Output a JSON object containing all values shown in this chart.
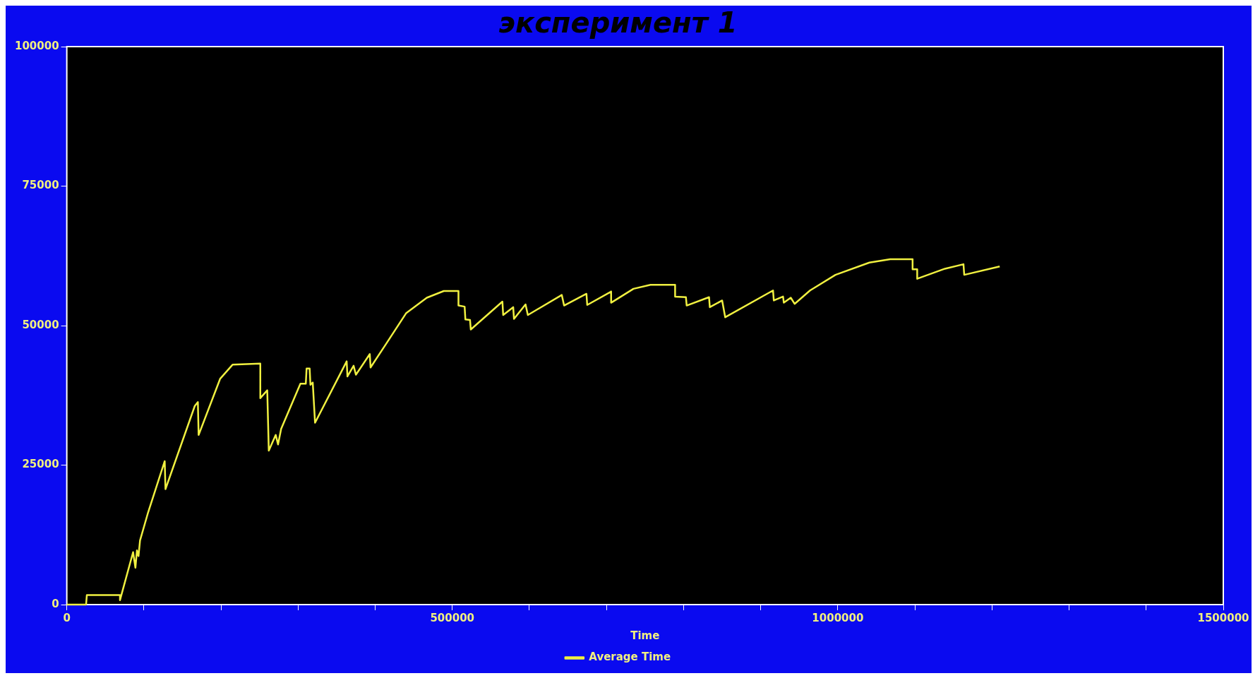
{
  "chart_data": {
    "type": "line",
    "title": "эксперимент 1",
    "xlabel": "Time",
    "legend": "bottom",
    "marker": "none",
    "grid": false,
    "xlim": [
      0,
      1500000
    ],
    "ylim": [
      0,
      100000
    ],
    "xticks": [
      0,
      {
        "value": 100000,
        "label": null
      },
      {
        "value": 200000,
        "label": null
      },
      {
        "value": 300000,
        "label": null
      },
      {
        "value": 400000,
        "label": null
      },
      500000,
      {
        "value": 600000,
        "label": null
      },
      {
        "value": 700000,
        "label": null
      },
      {
        "value": 800000,
        "label": null
      },
      {
        "value": 900000,
        "label": null
      },
      1000000,
      {
        "value": 1100000,
        "label": null
      },
      {
        "value": 1200000,
        "label": null
      },
      {
        "value": 1300000,
        "label": null
      },
      {
        "value": 1400000,
        "label": null
      },
      1500000
    ],
    "yticks": [
      0,
      25000,
      50000,
      75000,
      100000
    ],
    "series": [
      {
        "name": "Average Time",
        "color": "#f0f040",
        "x": [
          0,
          25000,
          26000,
          69000,
          69000,
          86000,
          89000,
          91000,
          93000,
          95000,
          105000,
          127000,
          128000,
          166000,
          170000,
          171000,
          199000,
          215000,
          251000,
          251000,
          260000,
          262000,
          271000,
          274000,
          278000,
          303000,
          310000,
          311000,
          315000,
          316000,
          319000,
          322000,
          363000,
          364000,
          372000,
          375000,
          393000,
          394000,
          414000,
          440000,
          467000,
          489000,
          508000,
          508000,
          516000,
          517000,
          523000,
          524000,
          565000,
          566000,
          579000,
          580000,
          595000,
          598000,
          642000,
          645000,
          674000,
          675000,
          706000,
          706000,
          735000,
          757000,
          789000,
          789000,
          803000,
          804000,
          833000,
          834000,
          850000,
          854000,
          916000,
          917000,
          929000,
          930000,
          939000,
          944000,
          964000,
          997000,
          1041000,
          1068000,
          1097000,
          1097000,
          1103000,
          1103000,
          1139000,
          1163000,
          1164000,
          1210000
        ],
        "values": [
          0,
          0,
          1700,
          1700,
          800,
          9400,
          6600,
          9700,
          8700,
          11500,
          16300,
          25700,
          20700,
          35600,
          36300,
          30400,
          40500,
          43000,
          43200,
          37000,
          38400,
          27600,
          30400,
          28700,
          31500,
          39600,
          39600,
          42300,
          42300,
          39400,
          39800,
          32600,
          43600,
          40900,
          42800,
          41200,
          44900,
          42500,
          46700,
          52200,
          55000,
          56200,
          56200,
          53600,
          53400,
          51100,
          51000,
          49300,
          54300,
          51900,
          53300,
          51200,
          53800,
          51900,
          55500,
          53600,
          55700,
          53700,
          56100,
          54100,
          56600,
          57300,
          57300,
          55200,
          55100,
          53600,
          55100,
          53300,
          54500,
          51500,
          56300,
          54500,
          55200,
          54100,
          55000,
          53900,
          56300,
          59100,
          61300,
          61900,
          61900,
          60100,
          60100,
          58400,
          60200,
          61000,
          59100,
          60600
        ]
      }
    ]
  }
}
